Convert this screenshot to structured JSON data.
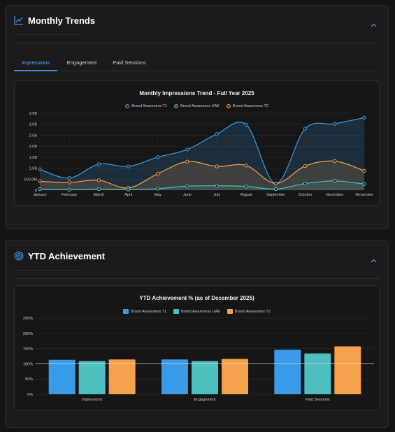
{
  "colors": {
    "accent": "#3d8fe8",
    "series1": "#3a9ce8",
    "series2": "#4dbfbf",
    "series3": "#f5a04a"
  },
  "monthly_trends": {
    "title": "Monthly Trends",
    "icon": "line-chart-icon",
    "tabs": [
      "Impressions",
      "Engagement",
      "Paid Sessions"
    ],
    "active_tab": "Impressions"
  },
  "ytd_achievement": {
    "title": "YTD Achievement",
    "icon": "target-icon"
  },
  "chart_data": [
    {
      "type": "area",
      "title": "Monthly Impressions Trend - Full Year 2025",
      "x": [
        "January",
        "February",
        "March",
        "April",
        "May",
        "June",
        "July",
        "August",
        "September",
        "October",
        "November",
        "December"
      ],
      "y_ticks": [
        "0",
        "500.0M",
        "1.0B",
        "1.5B",
        "2.0B",
        "2.5B",
        "3.0B",
        "3.5B"
      ],
      "ylim": [
        0,
        3.5
      ],
      "y_unit": "B",
      "grid": true,
      "legend_placement": "top",
      "series": [
        {
          "name": "Brand Awareness T1",
          "values": [
            0.95,
            0.55,
            1.18,
            1.08,
            1.5,
            1.85,
            2.55,
            2.98,
            0.3,
            2.8,
            3.02,
            3.3
          ]
        },
        {
          "name": "Brand Awareness UAE",
          "values": [
            0.05,
            0.02,
            0.05,
            0.03,
            0.07,
            0.18,
            0.2,
            0.17,
            0.05,
            0.3,
            0.42,
            0.28
          ]
        },
        {
          "name": "Brand Awareness T2",
          "values": [
            0.4,
            0.35,
            0.45,
            0.1,
            0.75,
            1.3,
            1.08,
            1.12,
            0.3,
            1.1,
            1.32,
            0.88
          ]
        }
      ]
    },
    {
      "type": "bar",
      "title": "YTD Achievement % (as of December 2025)",
      "categories": [
        "Impressions",
        "Engagement",
        "Paid Sessions"
      ],
      "y_ticks": [
        "0%",
        "50%",
        "100%",
        "150%",
        "200%",
        "250%"
      ],
      "ylim": [
        0,
        250
      ],
      "reference_line": 100,
      "grid": true,
      "legend_placement": "top",
      "series": [
        {
          "name": "Brand Awareness T1",
          "values": [
            113,
            114,
            146
          ]
        },
        {
          "name": "Brand Awareness UAE",
          "values": [
            109,
            109,
            134
          ]
        },
        {
          "name": "Brand Awareness T2",
          "values": [
            114,
            116,
            157
          ]
        }
      ]
    }
  ]
}
